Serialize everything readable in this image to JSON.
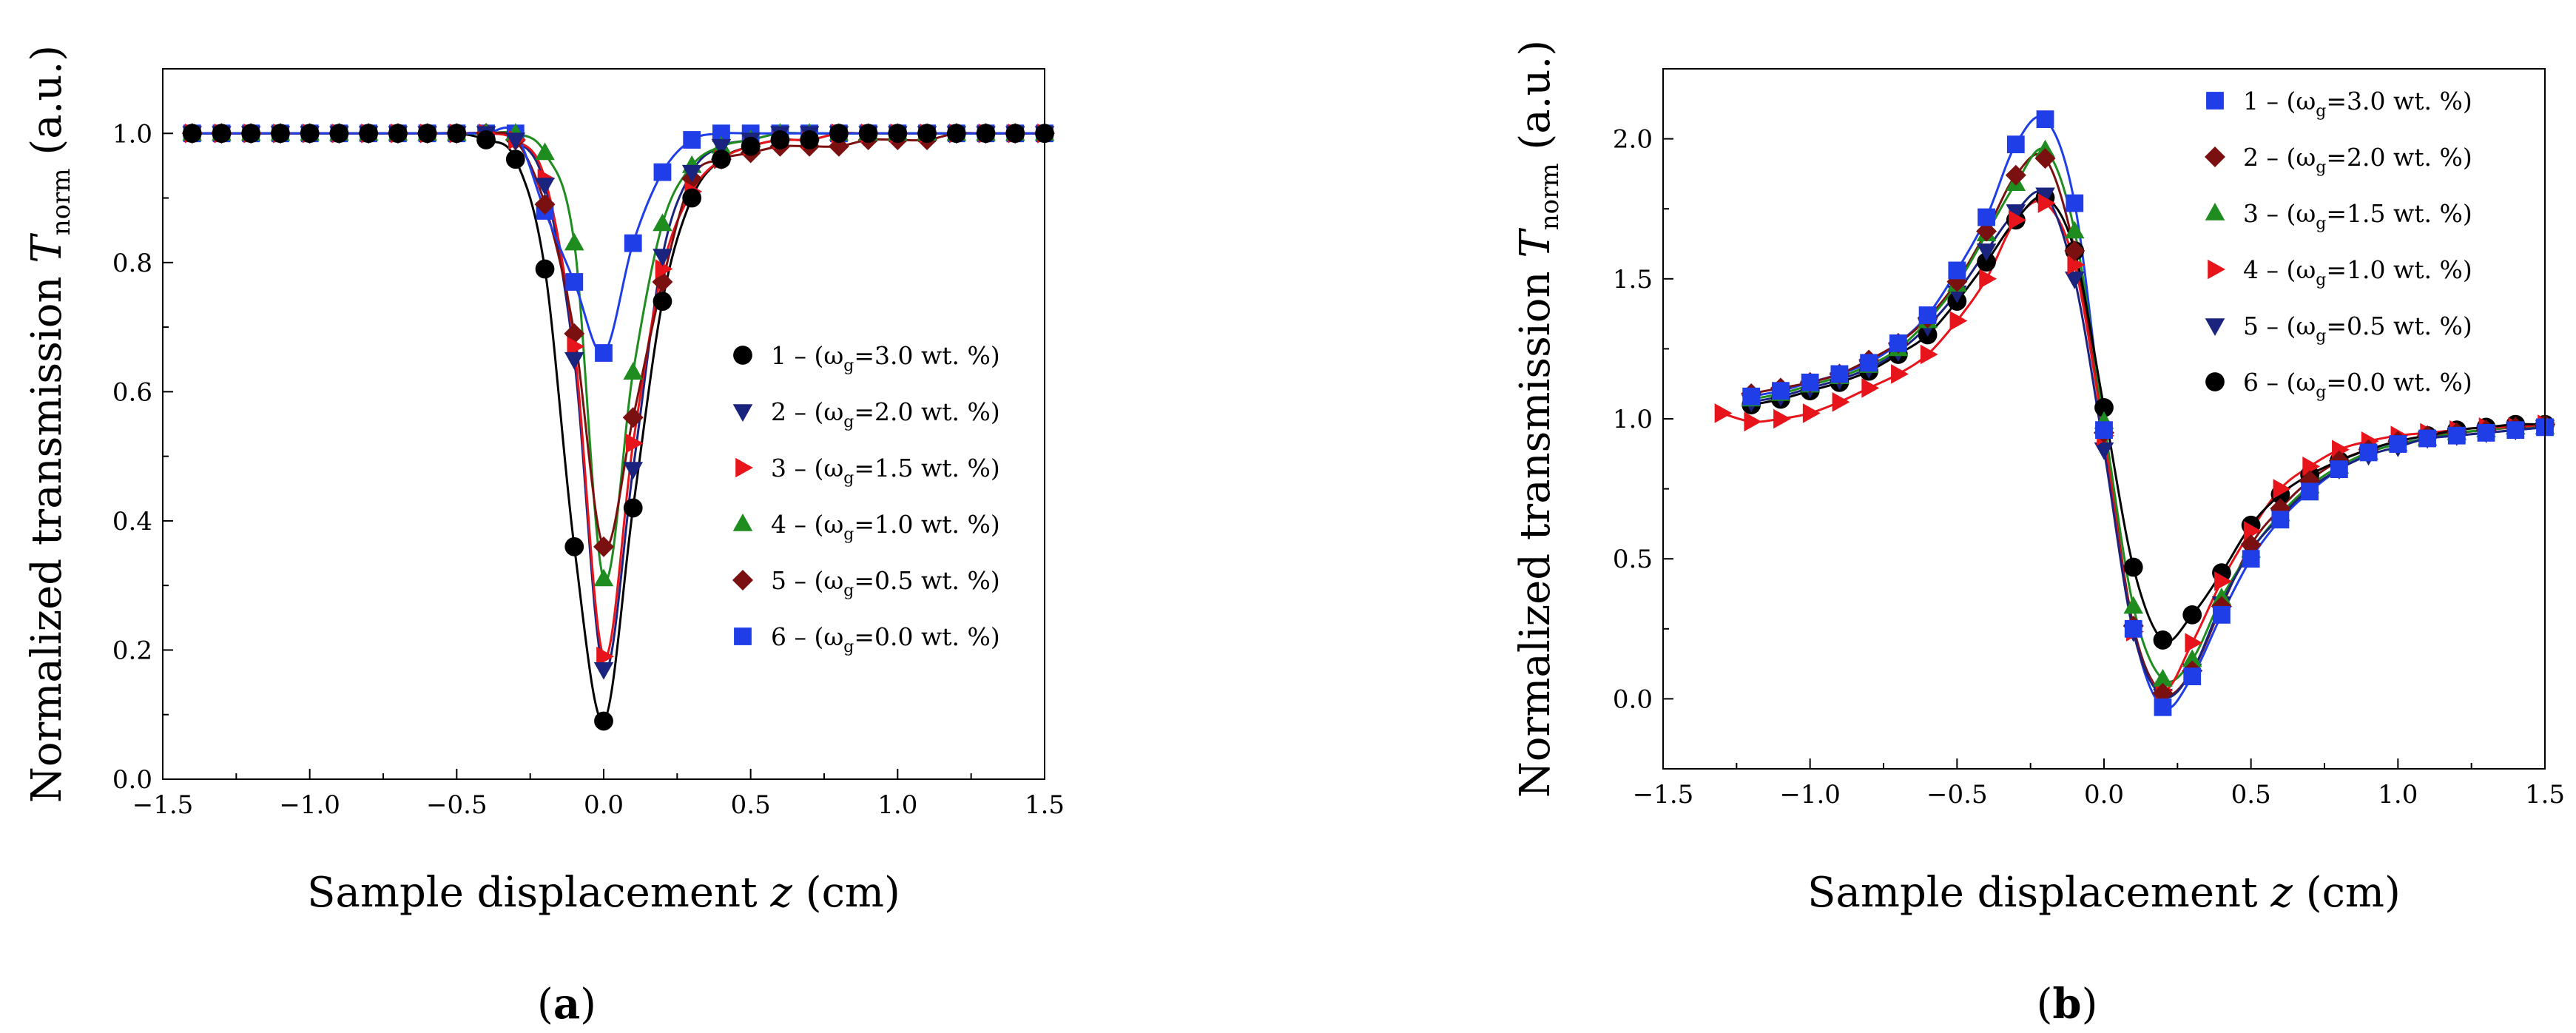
{
  "figure": {
    "panels": [
      {
        "id": "a",
        "label_open": "(",
        "label_letter": "a",
        "label_close": ")"
      },
      {
        "id": "b",
        "label_open": "(",
        "label_letter": "b",
        "label_close": ")"
      }
    ]
  },
  "chart_data": [
    {
      "panel": "a",
      "type": "scatter",
      "title": "",
      "xlabel": "Sample displacement z (cm)",
      "xlabel_parts": {
        "pre": "Sample displacement ",
        "var": "z",
        "post": " (cm)"
      },
      "ylabel": "Normalized transmission T_norm (a.u.)",
      "ylabel_parts": {
        "pre": "Normalized transmission ",
        "var": "T",
        "sub": "norm",
        "post": " (a.u.)"
      },
      "xlim": [
        -1.5,
        1.5
      ],
      "ylim": [
        0.0,
        1.1
      ],
      "xticks": [
        -1.5,
        -1.0,
        -0.5,
        0.0,
        0.5,
        1.0,
        1.5
      ],
      "xtick_labels": [
        "−1.5",
        "−1.0",
        "−0.5",
        "0.0",
        "0.5",
        "1.0",
        "1.5"
      ],
      "yticks": [
        0.0,
        0.2,
        0.4,
        0.6,
        0.8,
        1.0
      ],
      "ytick_labels": [
        "0.0",
        "0.2",
        "0.4",
        "0.6",
        "0.8",
        "1.0"
      ],
      "legend_position": "center-right",
      "series": [
        {
          "name": "1 – (ωg=3.0 wt. %)",
          "num": "1",
          "sym": "ω",
          "sub": "g",
          "val": "=3.0 wt. %)",
          "color": "#000000",
          "marker": "circle",
          "x": [
            -1.4,
            -1.3,
            -1.2,
            -1.1,
            -1.0,
            -0.9,
            -0.8,
            -0.7,
            -0.6,
            -0.5,
            -0.4,
            -0.3,
            -0.2,
            -0.1,
            0.0,
            0.1,
            0.2,
            0.3,
            0.4,
            0.5,
            0.6,
            0.7,
            0.8,
            0.9,
            1.0,
            1.1,
            1.2,
            1.3,
            1.4,
            1.5
          ],
          "y": [
            1.0,
            1.0,
            1.0,
            1.0,
            1.0,
            1.0,
            1.0,
            1.0,
            1.0,
            1.0,
            0.99,
            0.96,
            0.79,
            0.36,
            0.09,
            0.42,
            0.74,
            0.9,
            0.96,
            0.98,
            0.99,
            0.99,
            1.0,
            1.0,
            1.0,
            1.0,
            1.0,
            1.0,
            1.0,
            1.0
          ]
        },
        {
          "name": "2 – (ωg=2.0 wt. %)",
          "num": "2",
          "sym": "ω",
          "sub": "g",
          "val": "=2.0 wt. %)",
          "color": "#1a237e",
          "marker": "triangle-down",
          "x": [
            -1.4,
            -1.3,
            -1.2,
            -1.1,
            -1.0,
            -0.9,
            -0.8,
            -0.7,
            -0.6,
            -0.5,
            -0.4,
            -0.3,
            -0.2,
            -0.1,
            0.0,
            0.1,
            0.2,
            0.3,
            0.4,
            0.5,
            0.6,
            0.7,
            0.8,
            0.9,
            1.0,
            1.1,
            1.2,
            1.3,
            1.4,
            1.5
          ],
          "y": [
            1.0,
            1.0,
            1.0,
            1.0,
            1.0,
            1.0,
            1.0,
            1.0,
            1.0,
            1.0,
            1.0,
            0.99,
            0.92,
            0.65,
            0.17,
            0.48,
            0.81,
            0.94,
            0.98,
            0.99,
            1.0,
            1.0,
            1.0,
            1.0,
            1.0,
            1.0,
            1.0,
            1.0,
            1.0,
            1.0
          ]
        },
        {
          "name": "3 – (ωg=1.5 wt. %)",
          "num": "3",
          "sym": "ω",
          "sub": "g",
          "val": "=1.5 wt. %)",
          "color": "#e8141b",
          "marker": "triangle-right",
          "x": [
            -1.4,
            -1.3,
            -1.2,
            -1.1,
            -1.0,
            -0.9,
            -0.8,
            -0.7,
            -0.6,
            -0.5,
            -0.4,
            -0.3,
            -0.2,
            -0.1,
            0.0,
            0.1,
            0.2,
            0.3,
            0.4,
            0.5,
            0.6,
            0.7,
            0.8,
            0.9,
            1.0,
            1.1,
            1.2,
            1.3,
            1.4,
            1.5
          ],
          "y": [
            1.0,
            1.0,
            1.0,
            1.0,
            1.0,
            1.0,
            1.0,
            1.0,
            1.0,
            1.0,
            1.0,
            0.99,
            0.93,
            0.67,
            0.19,
            0.52,
            0.79,
            0.91,
            0.96,
            0.98,
            0.99,
            0.99,
            1.0,
            1.0,
            1.0,
            1.0,
            1.0,
            1.0,
            1.0,
            1.0
          ]
        },
        {
          "name": "4 – (ωg=1.0 wt. %)",
          "num": "4",
          "sym": "ω",
          "sub": "g",
          "val": "=1.0 wt. %)",
          "color": "#1e8c1e",
          "marker": "triangle-up",
          "x": [
            -1.4,
            -1.3,
            -1.2,
            -1.1,
            -1.0,
            -0.9,
            -0.8,
            -0.7,
            -0.6,
            -0.5,
            -0.4,
            -0.3,
            -0.2,
            -0.1,
            0.0,
            0.1,
            0.2,
            0.3,
            0.4,
            0.5,
            0.6,
            0.7,
            0.8,
            0.9,
            1.0,
            1.1,
            1.2,
            1.3,
            1.4,
            1.5
          ],
          "y": [
            1.0,
            1.0,
            1.0,
            1.0,
            1.0,
            1.0,
            1.0,
            1.0,
            1.0,
            1.0,
            1.0,
            1.0,
            0.97,
            0.83,
            0.31,
            0.63,
            0.86,
            0.95,
            0.98,
            0.99,
            1.0,
            1.0,
            1.0,
            1.0,
            1.0,
            1.0,
            1.0,
            1.0,
            1.0,
            1.0
          ]
        },
        {
          "name": "5 – (ωg=0.5 wt. %)",
          "num": "5",
          "sym": "ω",
          "sub": "g",
          "val": "=0.5 wt. %)",
          "color": "#7b1010",
          "marker": "diamond",
          "x": [
            -1.4,
            -1.3,
            -1.2,
            -1.1,
            -1.0,
            -0.9,
            -0.8,
            -0.7,
            -0.6,
            -0.5,
            -0.4,
            -0.3,
            -0.2,
            -0.1,
            0.0,
            0.1,
            0.2,
            0.3,
            0.4,
            0.5,
            0.6,
            0.7,
            0.8,
            0.9,
            1.0,
            1.1,
            1.2,
            1.3,
            1.4,
            1.5
          ],
          "y": [
            1.0,
            1.0,
            1.0,
            1.0,
            1.0,
            1.0,
            1.0,
            1.0,
            1.0,
            1.0,
            1.0,
            0.99,
            0.89,
            0.69,
            0.36,
            0.56,
            0.77,
            0.93,
            0.96,
            0.97,
            0.98,
            0.98,
            0.98,
            0.99,
            0.99,
            0.99,
            1.0,
            1.0,
            1.0,
            1.0
          ]
        },
        {
          "name": "6 – (ωg=0.0 wt. %)",
          "num": "6",
          "sym": "ω",
          "sub": "g",
          "val": "=0.0 wt. %)",
          "color": "#1f3ee8",
          "marker": "square",
          "x": [
            -1.4,
            -1.3,
            -1.2,
            -1.1,
            -1.0,
            -0.9,
            -0.8,
            -0.7,
            -0.6,
            -0.5,
            -0.4,
            -0.3,
            -0.2,
            -0.1,
            0.0,
            0.1,
            0.2,
            0.3,
            0.4,
            0.5,
            0.6,
            0.7,
            0.8,
            0.9,
            1.0,
            1.1,
            1.2,
            1.3,
            1.4,
            1.5
          ],
          "y": [
            1.0,
            1.0,
            1.0,
            1.0,
            1.0,
            1.0,
            1.0,
            1.0,
            1.0,
            1.0,
            1.0,
            1.0,
            0.88,
            0.77,
            0.66,
            0.83,
            0.94,
            0.99,
            1.0,
            1.0,
            1.0,
            1.0,
            1.0,
            1.0,
            1.0,
            1.0,
            1.0,
            1.0,
            1.0,
            1.0
          ]
        }
      ]
    },
    {
      "panel": "b",
      "type": "scatter",
      "title": "",
      "xlabel": "Sample displacement z (cm)",
      "xlabel_parts": {
        "pre": "Sample displacement ",
        "var": "z",
        "post": " (cm)"
      },
      "ylabel": "Normalized transmission T_norm (a.u.)",
      "ylabel_parts": {
        "pre": "Normalized transmission ",
        "var": "T",
        "sub": "norm",
        "post": " (a.u.)"
      },
      "xlim": [
        -1.5,
        1.5
      ],
      "ylim": [
        -0.25,
        2.25
      ],
      "xticks": [
        -1.5,
        -1.0,
        -0.5,
        0.0,
        0.5,
        1.0,
        1.5
      ],
      "xtick_labels": [
        "−1.5",
        "−1.0",
        "−0.5",
        "0.0",
        "0.5",
        "1.0",
        "1.5"
      ],
      "yticks": [
        0.0,
        0.5,
        1.0,
        1.5,
        2.0
      ],
      "ytick_labels": [
        "0.0",
        "0.5",
        "1.0",
        "1.5",
        "2.0"
      ],
      "legend_position": "top-right",
      "series": [
        {
          "name": "1 – (ωg=3.0 wt. %)",
          "num": "1",
          "sym": "ω",
          "sub": "g",
          "val": "=3.0 wt. %)",
          "color": "#1f3ee8",
          "marker": "square",
          "x": [
            -1.2,
            -1.1,
            -1.0,
            -0.9,
            -0.8,
            -0.7,
            -0.6,
            -0.5,
            -0.4,
            -0.3,
            -0.2,
            -0.1,
            0.0,
            0.1,
            0.2,
            0.3,
            0.4,
            0.5,
            0.6,
            0.7,
            0.8,
            0.9,
            1.0,
            1.1,
            1.2,
            1.3,
            1.4,
            1.5
          ],
          "y": [
            1.08,
            1.1,
            1.13,
            1.16,
            1.2,
            1.27,
            1.37,
            1.53,
            1.72,
            1.98,
            2.07,
            1.77,
            0.96,
            0.25,
            -0.03,
            0.08,
            0.3,
            0.5,
            0.64,
            0.74,
            0.82,
            0.88,
            0.91,
            0.93,
            0.94,
            0.95,
            0.96,
            0.97
          ]
        },
        {
          "name": "2 – (ωg=2.0 wt. %)",
          "num": "2",
          "sym": "ω",
          "sub": "g",
          "val": "=2.0 wt. %)",
          "color": "#7b1010",
          "marker": "diamond",
          "x": [
            -1.2,
            -1.1,
            -1.0,
            -0.9,
            -0.8,
            -0.7,
            -0.6,
            -0.5,
            -0.4,
            -0.3,
            -0.2,
            -0.1,
            0.0,
            0.1,
            0.2,
            0.3,
            0.4,
            0.5,
            0.6,
            0.7,
            0.8,
            0.9,
            1.0,
            1.1,
            1.2,
            1.3,
            1.4,
            1.5
          ],
          "y": [
            1.09,
            1.11,
            1.13,
            1.16,
            1.21,
            1.27,
            1.36,
            1.49,
            1.67,
            1.87,
            1.93,
            1.6,
            0.95,
            0.26,
            0.02,
            0.1,
            0.33,
            0.55,
            0.68,
            0.78,
            0.85,
            0.89,
            0.92,
            0.94,
            0.95,
            0.96,
            0.97,
            0.98
          ]
        },
        {
          "name": "3 – (ωg=1.5 wt. %)",
          "num": "3",
          "sym": "ω",
          "sub": "g",
          "val": "=1.5 wt. %)",
          "color": "#1e8c1e",
          "marker": "triangle-up",
          "x": [
            -1.2,
            -1.1,
            -1.0,
            -0.9,
            -0.8,
            -0.7,
            -0.6,
            -0.5,
            -0.4,
            -0.3,
            -0.2,
            -0.1,
            0.0,
            0.1,
            0.2,
            0.3,
            0.4,
            0.5,
            0.6,
            0.7,
            0.8,
            0.9,
            1.0,
            1.1,
            1.2,
            1.3,
            1.4,
            1.5
          ],
          "y": [
            1.07,
            1.09,
            1.12,
            1.15,
            1.19,
            1.25,
            1.35,
            1.48,
            1.66,
            1.84,
            1.96,
            1.67,
            0.99,
            0.33,
            0.07,
            0.14,
            0.36,
            0.53,
            0.66,
            0.76,
            0.83,
            0.88,
            0.91,
            0.93,
            0.95,
            0.96,
            0.97,
            0.97
          ]
        },
        {
          "name": "4 – (ωg=1.0 wt. %)",
          "num": "4",
          "sym": "ω",
          "sub": "g",
          "val": "=1.0 wt. %)",
          "color": "#e8141b",
          "marker": "triangle-right",
          "x": [
            -1.3,
            -1.2,
            -1.1,
            -1.0,
            -0.9,
            -0.8,
            -0.7,
            -0.6,
            -0.5,
            -0.4,
            -0.3,
            -0.2,
            -0.1,
            0.0,
            0.1,
            0.2,
            0.3,
            0.4,
            0.5,
            0.6,
            0.7,
            0.8,
            0.9,
            1.0,
            1.1,
            1.2,
            1.3,
            1.4,
            1.5
          ],
          "y": [
            1.02,
            0.99,
            1.0,
            1.02,
            1.06,
            1.11,
            1.16,
            1.23,
            1.35,
            1.5,
            1.71,
            1.77,
            1.55,
            0.94,
            0.24,
            0.03,
            0.2,
            0.42,
            0.6,
            0.75,
            0.83,
            0.89,
            0.92,
            0.94,
            0.95,
            0.96,
            0.97,
            0.97,
            0.98
          ]
        },
        {
          "name": "5 – (ωg=0.5 wt. %)",
          "num": "5",
          "sym": "ω",
          "sub": "g",
          "val": "=0.5 wt. %)",
          "color": "#1a237e",
          "marker": "triangle-down",
          "x": [
            -1.2,
            -1.1,
            -1.0,
            -0.9,
            -0.8,
            -0.7,
            -0.6,
            -0.5,
            -0.4,
            -0.3,
            -0.2,
            -0.1,
            0.0,
            0.1,
            0.2,
            0.3,
            0.4,
            0.5,
            0.6,
            0.7,
            0.8,
            0.9,
            1.0,
            1.1,
            1.2,
            1.3,
            1.4,
            1.5
          ],
          "y": [
            1.06,
            1.08,
            1.11,
            1.14,
            1.18,
            1.24,
            1.33,
            1.45,
            1.6,
            1.74,
            1.8,
            1.5,
            0.89,
            0.24,
            0.01,
            0.1,
            0.34,
            0.53,
            0.65,
            0.75,
            0.82,
            0.87,
            0.9,
            0.93,
            0.94,
            0.95,
            0.96,
            0.97
          ]
        },
        {
          "name": "6 – (ωg=0.0 wt. %)",
          "num": "6",
          "sym": "ω",
          "sub": "g",
          "val": "=0.0 wt. %)",
          "color": "#000000",
          "marker": "circle",
          "x": [
            -1.2,
            -1.1,
            -1.0,
            -0.9,
            -0.8,
            -0.7,
            -0.6,
            -0.5,
            -0.4,
            -0.3,
            -0.2,
            -0.1,
            0.0,
            0.1,
            0.2,
            0.3,
            0.4,
            0.5,
            0.6,
            0.7,
            0.8,
            0.9,
            1.0,
            1.1,
            1.2,
            1.3,
            1.4,
            1.5
          ],
          "y": [
            1.05,
            1.07,
            1.1,
            1.13,
            1.17,
            1.23,
            1.3,
            1.42,
            1.56,
            1.71,
            1.79,
            1.6,
            1.04,
            0.47,
            0.21,
            0.3,
            0.45,
            0.62,
            0.73,
            0.8,
            0.85,
            0.89,
            0.92,
            0.94,
            0.96,
            0.97,
            0.98,
            0.98
          ]
        }
      ]
    }
  ]
}
